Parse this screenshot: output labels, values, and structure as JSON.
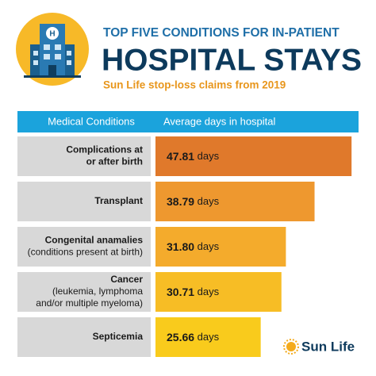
{
  "header": {
    "kicker": "TOP FIVE CONDITIONS FOR IN-PATIENT",
    "title": "HOSPITAL STAYS",
    "subtitle": "Sun Life stop-loss claims from 2019",
    "logo_text": "Sun Life"
  },
  "chart_data": {
    "type": "bar",
    "orientation": "horizontal",
    "category_header": "Medical Conditions",
    "value_header": "Average days in hospital",
    "categories": [
      "Complications at\nor after birth",
      "Transplant",
      "Congenital anamalies\n(conditions present at birth)",
      "Cancer\n(leukemia, lymphoma\nand/or multiple myeloma)",
      "Septicemia"
    ],
    "values": [
      47.81,
      38.79,
      31.8,
      30.71,
      25.66
    ],
    "value_labels": [
      "47.81 days",
      "38.79 days",
      "31.80 days",
      "30.71 days",
      "25.66 days"
    ],
    "colors": [
      "#e0792b",
      "#ee982f",
      "#f4ab2c",
      "#f7bd25",
      "#f9cb1c"
    ]
  }
}
